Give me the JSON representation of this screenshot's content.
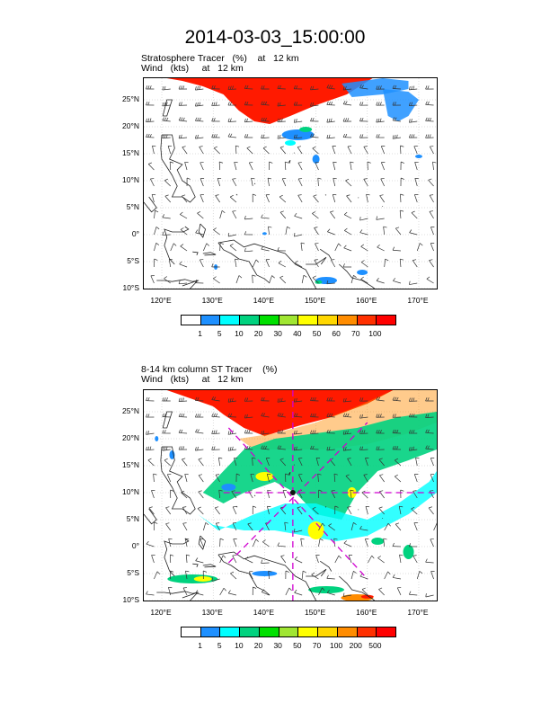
{
  "title": "2014-03-03_15:00:00",
  "panels": [
    {
      "label_line1": "Stratosphere Tracer   (%)    at   12 km",
      "label_line2": "Wind   (kts)     at   12 km",
      "colorbar_labels": [
        "1",
        "5",
        "10",
        "20",
        "30",
        "40",
        "50",
        "60",
        "70",
        "100"
      ],
      "colorbar_colors": [
        "#ffffff",
        "#1e90ff",
        "#00ffff",
        "#00d27f",
        "#00e000",
        "#a0e632",
        "#ffff00",
        "#ffd700",
        "#ff8c00",
        "#ff3000",
        "#ff0000"
      ]
    },
    {
      "label_line1": "8-14 km column ST Tracer    (%)",
      "label_line2": "Wind   (kts)     at   12 km",
      "colorbar_labels": [
        "1",
        "5",
        "10",
        "20",
        "30",
        "50",
        "70",
        "100",
        "200",
        "500"
      ],
      "colorbar_colors": [
        "#ffffff",
        "#1e90ff",
        "#00ffff",
        "#00d27f",
        "#00e000",
        "#a0e632",
        "#ffff00",
        "#ffd700",
        "#ff8c00",
        "#ff3000",
        "#ff0000"
      ]
    }
  ],
  "lat_ticks": [
    "25°N",
    "20°N",
    "15°N",
    "10°N",
    "5°N",
    "0°",
    "5°S",
    "10°S"
  ],
  "lon_ticks": [
    "120°E",
    "130°E",
    "140°E",
    "150°E",
    "160°E",
    "170°E"
  ],
  "map_extent": {
    "lon_min": 116.5,
    "lon_max": 173.5,
    "lat_min": -10,
    "lat_max": 29
  },
  "colors": {
    "tracer_red": "#ff1a00",
    "tracer_orange": "#ff8c00",
    "tracer_yellow": "#ffff00",
    "tracer_green": "#00d27f",
    "tracer_blue": "#1e90ff",
    "tracer_cyan": "#00ffff",
    "dashed_line": "#d000d0",
    "grid": "#bbbbbb"
  }
}
